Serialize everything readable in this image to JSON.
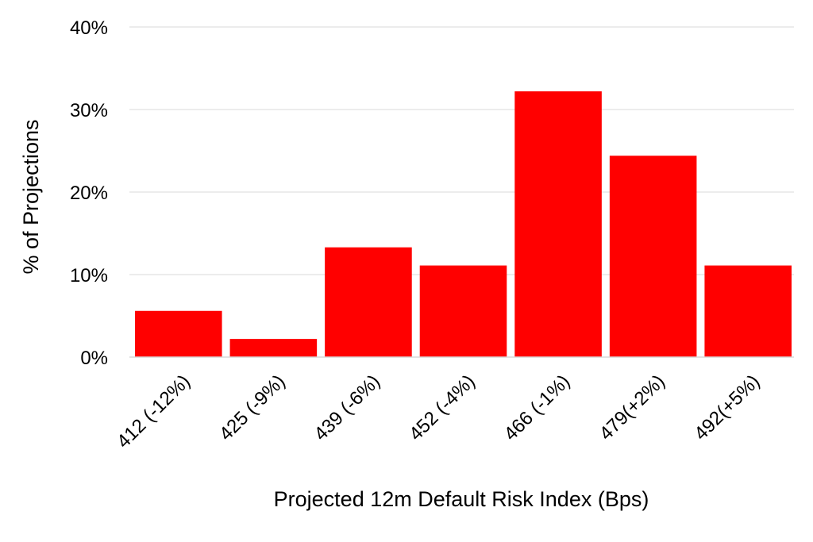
{
  "chart_data": {
    "type": "bar",
    "title": "",
    "xlabel": "Projected 12m Default Risk Index (Bps)",
    "ylabel": "% of Projections",
    "categories": [
      "412 (-12%)",
      "425 (-9%)",
      "439 (-6%)",
      "452 (-4%)",
      "466 (-1%)",
      "479(+2%)",
      "492(+5%)"
    ],
    "values": [
      5.6,
      2.2,
      13.3,
      11.1,
      32.2,
      24.4,
      11.1
    ],
    "ylim": [
      0,
      40
    ],
    "yticks": [
      0,
      10,
      20,
      30,
      40
    ],
    "ytick_format": "percent",
    "grid": true,
    "legend": "none",
    "bar_color": "#ff0000"
  }
}
